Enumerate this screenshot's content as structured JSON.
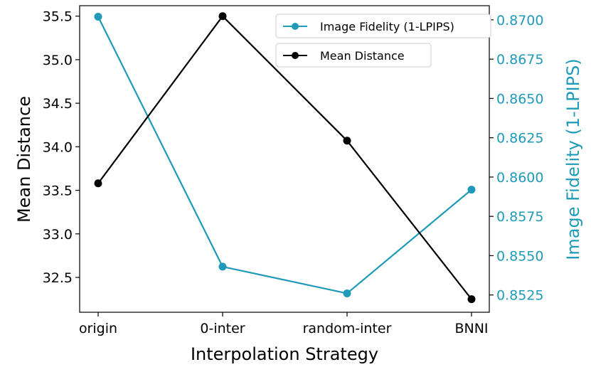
{
  "chart_data": {
    "type": "line",
    "categories": [
      "origin",
      "0-inter",
      "random-inter",
      "BNNI"
    ],
    "xlabel": "Interpolation Strategy",
    "ylabel_left": "Mean Distance",
    "ylabel_right": "Image Fidelity (1-LPIPS)",
    "left_axis": {
      "ylim": [
        32.1,
        35.62
      ],
      "ticks": [
        "32.5",
        "33.0",
        "33.5",
        "34.0",
        "34.5",
        "35.0",
        "35.5"
      ]
    },
    "right_axis": {
      "ylim": [
        0.8514,
        0.8709
      ],
      "ticks": [
        "0.8525",
        "0.8550",
        "0.8575",
        "0.8600",
        "0.8625",
        "0.8650",
        "0.8675",
        "0.8700"
      ]
    },
    "series": [
      {
        "name": "Image Fidelity (1-LPIPS)",
        "axis": "right",
        "color": "#1f9ab8",
        "values": [
          0.8702,
          0.8543,
          0.8526,
          0.8592
        ]
      },
      {
        "name": "Mean Distance",
        "axis": "left",
        "color": "#000000",
        "values": [
          33.58,
          35.5,
          34.07,
          32.25
        ]
      }
    ],
    "legend_position": "top-right",
    "grid": false
  }
}
